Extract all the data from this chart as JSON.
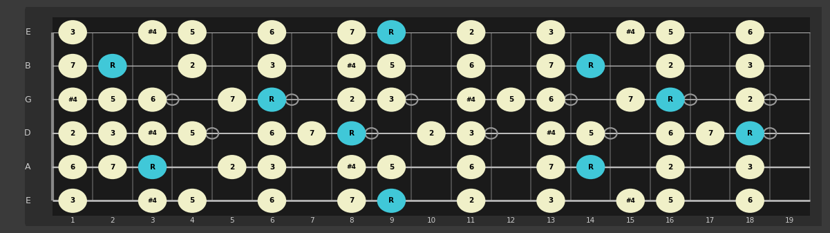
{
  "fret_min": 1,
  "fret_max": 19,
  "background_color": "#3a3a3a",
  "fretboard_color": "#1a1a1a",
  "fret_block_color": "#0d0d0d",
  "string_color": "#bbbbbb",
  "fret_color": "#444444",
  "note_fill_normal": "#f0f0c8",
  "note_fill_root": "#40c8d8",
  "note_text_color": "#000000",
  "fret_numbers": [
    1,
    2,
    3,
    4,
    5,
    6,
    7,
    8,
    9,
    10,
    11,
    12,
    13,
    14,
    15,
    16,
    17,
    18,
    19
  ],
  "string_labels_top_to_bottom": [
    "E",
    "B",
    "G",
    "D",
    "A",
    "E"
  ],
  "notes": [
    {
      "string": 0,
      "fret": 1,
      "label": "3",
      "root": false
    },
    {
      "string": 0,
      "fret": 3,
      "label": "#4",
      "root": false
    },
    {
      "string": 0,
      "fret": 4,
      "label": "5",
      "root": false
    },
    {
      "string": 0,
      "fret": 6,
      "label": "6",
      "root": false
    },
    {
      "string": 0,
      "fret": 8,
      "label": "7",
      "root": false
    },
    {
      "string": 0,
      "fret": 9,
      "label": "R",
      "root": true
    },
    {
      "string": 0,
      "fret": 11,
      "label": "2",
      "root": false
    },
    {
      "string": 0,
      "fret": 13,
      "label": "3",
      "root": false
    },
    {
      "string": 0,
      "fret": 15,
      "label": "#4",
      "root": false
    },
    {
      "string": 0,
      "fret": 16,
      "label": "5",
      "root": false
    },
    {
      "string": 0,
      "fret": 18,
      "label": "6",
      "root": false
    },
    {
      "string": 1,
      "fret": 1,
      "label": "7",
      "root": false
    },
    {
      "string": 1,
      "fret": 2,
      "label": "R",
      "root": true
    },
    {
      "string": 1,
      "fret": 4,
      "label": "2",
      "root": false
    },
    {
      "string": 1,
      "fret": 6,
      "label": "3",
      "root": false
    },
    {
      "string": 1,
      "fret": 8,
      "label": "#4",
      "root": false
    },
    {
      "string": 1,
      "fret": 9,
      "label": "5",
      "root": false
    },
    {
      "string": 1,
      "fret": 11,
      "label": "6",
      "root": false
    },
    {
      "string": 1,
      "fret": 13,
      "label": "7",
      "root": false
    },
    {
      "string": 1,
      "fret": 14,
      "label": "R",
      "root": true
    },
    {
      "string": 1,
      "fret": 16,
      "label": "2",
      "root": false
    },
    {
      "string": 1,
      "fret": 18,
      "label": "3",
      "root": false
    },
    {
      "string": 2,
      "fret": 1,
      "label": "#4",
      "root": false
    },
    {
      "string": 2,
      "fret": 2,
      "label": "5",
      "root": false
    },
    {
      "string": 2,
      "fret": 3,
      "label": "6",
      "root": false
    },
    {
      "string": 2,
      "fret": 5,
      "label": "7",
      "root": false
    },
    {
      "string": 2,
      "fret": 6,
      "label": "R",
      "root": true
    },
    {
      "string": 2,
      "fret": 8,
      "label": "2",
      "root": false
    },
    {
      "string": 2,
      "fret": 9,
      "label": "3",
      "root": false
    },
    {
      "string": 2,
      "fret": 11,
      "label": "#4",
      "root": false
    },
    {
      "string": 2,
      "fret": 12,
      "label": "5",
      "root": false
    },
    {
      "string": 2,
      "fret": 13,
      "label": "6",
      "root": false
    },
    {
      "string": 2,
      "fret": 15,
      "label": "7",
      "root": false
    },
    {
      "string": 2,
      "fret": 16,
      "label": "R",
      "root": true
    },
    {
      "string": 2,
      "fret": 18,
      "label": "2",
      "root": false
    },
    {
      "string": 3,
      "fret": 1,
      "label": "2",
      "root": false
    },
    {
      "string": 3,
      "fret": 2,
      "label": "3",
      "root": false
    },
    {
      "string": 3,
      "fret": 3,
      "label": "#4",
      "root": false
    },
    {
      "string": 3,
      "fret": 4,
      "label": "5",
      "root": false
    },
    {
      "string": 3,
      "fret": 6,
      "label": "6",
      "root": false
    },
    {
      "string": 3,
      "fret": 7,
      "label": "7",
      "root": false
    },
    {
      "string": 3,
      "fret": 8,
      "label": "R",
      "root": true
    },
    {
      "string": 3,
      "fret": 10,
      "label": "2",
      "root": false
    },
    {
      "string": 3,
      "fret": 11,
      "label": "3",
      "root": false
    },
    {
      "string": 3,
      "fret": 13,
      "label": "#4",
      "root": false
    },
    {
      "string": 3,
      "fret": 14,
      "label": "5",
      "root": false
    },
    {
      "string": 3,
      "fret": 16,
      "label": "6",
      "root": false
    },
    {
      "string": 3,
      "fret": 17,
      "label": "7",
      "root": false
    },
    {
      "string": 3,
      "fret": 18,
      "label": "R",
      "root": true
    },
    {
      "string": 4,
      "fret": 1,
      "label": "6",
      "root": false
    },
    {
      "string": 4,
      "fret": 2,
      "label": "7",
      "root": false
    },
    {
      "string": 4,
      "fret": 3,
      "label": "R",
      "root": true
    },
    {
      "string": 4,
      "fret": 5,
      "label": "2",
      "root": false
    },
    {
      "string": 4,
      "fret": 6,
      "label": "3",
      "root": false
    },
    {
      "string": 4,
      "fret": 8,
      "label": "#4",
      "root": false
    },
    {
      "string": 4,
      "fret": 9,
      "label": "5",
      "root": false
    },
    {
      "string": 4,
      "fret": 11,
      "label": "6",
      "root": false
    },
    {
      "string": 4,
      "fret": 13,
      "label": "7",
      "root": false
    },
    {
      "string": 4,
      "fret": 14,
      "label": "R",
      "root": true
    },
    {
      "string": 4,
      "fret": 16,
      "label": "2",
      "root": false
    },
    {
      "string": 4,
      "fret": 18,
      "label": "3",
      "root": false
    },
    {
      "string": 5,
      "fret": 1,
      "label": "3",
      "root": false
    },
    {
      "string": 5,
      "fret": 3,
      "label": "#4",
      "root": false
    },
    {
      "string": 5,
      "fret": 4,
      "label": "5",
      "root": false
    },
    {
      "string": 5,
      "fret": 6,
      "label": "6",
      "root": false
    },
    {
      "string": 5,
      "fret": 8,
      "label": "7",
      "root": false
    },
    {
      "string": 5,
      "fret": 9,
      "label": "R",
      "root": true
    },
    {
      "string": 5,
      "fret": 11,
      "label": "2",
      "root": false
    },
    {
      "string": 5,
      "fret": 13,
      "label": "3",
      "root": false
    },
    {
      "string": 5,
      "fret": 15,
      "label": "#4",
      "root": false
    },
    {
      "string": 5,
      "fret": 16,
      "label": "5",
      "root": false
    },
    {
      "string": 5,
      "fret": 18,
      "label": "6",
      "root": false
    }
  ],
  "open_dots": [
    {
      "string": 2,
      "fret": 4
    },
    {
      "string": 2,
      "fret": 7
    },
    {
      "string": 2,
      "fret": 10
    },
    {
      "string": 2,
      "fret": 14
    },
    {
      "string": 2,
      "fret": 17
    },
    {
      "string": 2,
      "fret": 19
    },
    {
      "string": 3,
      "fret": 5
    },
    {
      "string": 3,
      "fret": 9
    },
    {
      "string": 3,
      "fret": 12
    },
    {
      "string": 3,
      "fret": 15
    },
    {
      "string": 3,
      "fret": 19
    }
  ]
}
